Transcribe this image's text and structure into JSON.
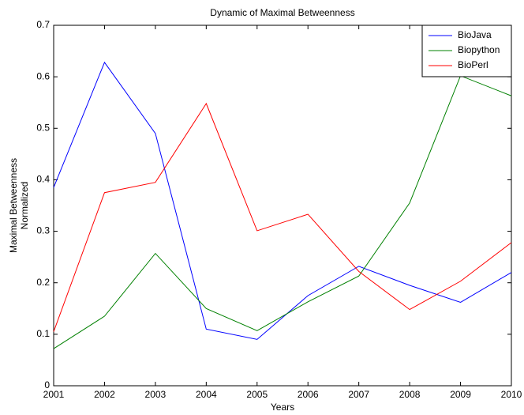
{
  "chart_data": {
    "type": "line",
    "title": "Dynamic of Maximal Betweenness",
    "xlabel": "Years",
    "ylabel": [
      "Maximal Betweenness",
      "Normalized"
    ],
    "x": [
      2001,
      2002,
      2003,
      2004,
      2005,
      2006,
      2007,
      2008,
      2009,
      2010
    ],
    "xlim": [
      2001,
      2010
    ],
    "xticks": [
      2001,
      2002,
      2003,
      2004,
      2005,
      2006,
      2007,
      2008,
      2009,
      2010
    ],
    "ylim": [
      0,
      0.7
    ],
    "yticks": [
      0,
      0.1,
      0.2,
      0.3,
      0.4,
      0.5,
      0.6,
      0.7
    ],
    "legend": "upper right",
    "series": [
      {
        "name": "BioJava",
        "color": "#0000ff",
        "values": [
          0.385,
          0.628,
          0.49,
          0.11,
          0.09,
          0.175,
          0.232,
          0.195,
          0.162,
          0.22
        ]
      },
      {
        "name": "Biopython",
        "color": "#008000",
        "values": [
          0.072,
          0.135,
          0.257,
          0.15,
          0.107,
          0.163,
          0.213,
          0.355,
          0.602,
          0.563
        ]
      },
      {
        "name": "BioPerl",
        "color": "#ff0000",
        "values": [
          0.105,
          0.375,
          0.395,
          0.548,
          0.301,
          0.333,
          0.222,
          0.148,
          0.203,
          0.278
        ]
      }
    ]
  }
}
